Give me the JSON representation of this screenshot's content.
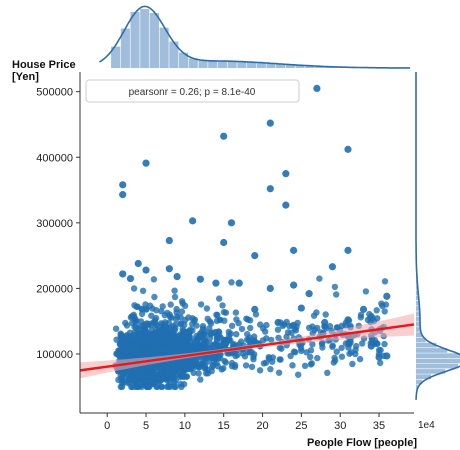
{
  "chart_data": {
    "type": "scatter",
    "title": "",
    "xlabel": "People Flow [people]",
    "ylabel_line1": "House Price",
    "ylabel_line2": "[Yen]",
    "x_scale_label": "1e4",
    "x_ticks": [
      0,
      5,
      10,
      15,
      20,
      25,
      30,
      35
    ],
    "x_tick_labels": [
      "0",
      "5",
      "10",
      "15",
      "20",
      "25",
      "30",
      "35"
    ],
    "y_ticks": [
      100000,
      200000,
      300000,
      400000,
      500000
    ],
    "y_tick_labels": [
      "100000",
      "200000",
      "300000",
      "400000",
      "500000"
    ],
    "xlim": [
      -3.5,
      39.5
    ],
    "ylim": [
      10000,
      530000
    ],
    "annotation": "pearsonr = 0.26; p = 8.1e-40",
    "grid": false,
    "regression": {
      "x": [
        -3.5,
        39.5
      ],
      "y": [
        75000,
        145000
      ],
      "color": "#e41a1c"
    },
    "colors": {
      "points": "#1f6fb2",
      "marginal_fill": "#8fb3d6",
      "marginal_line": "#2e6ea6",
      "band": "#f4a6a6"
    },
    "outliers": [
      {
        "x": 2,
        "y": 358000
      },
      {
        "x": 2,
        "y": 343000
      },
      {
        "x": 5,
        "y": 391000
      },
      {
        "x": 15,
        "y": 432000
      },
      {
        "x": 27,
        "y": 505000
      },
      {
        "x": 21,
        "y": 452000
      },
      {
        "x": 31,
        "y": 412000
      },
      {
        "x": 23,
        "y": 375000
      },
      {
        "x": 21,
        "y": 352000
      },
      {
        "x": 23,
        "y": 327000
      },
      {
        "x": 11,
        "y": 303000
      },
      {
        "x": 16,
        "y": 300000
      },
      {
        "x": 15,
        "y": 270000
      },
      {
        "x": 8,
        "y": 273000
      },
      {
        "x": 31,
        "y": 258000
      },
      {
        "x": 29,
        "y": 233000
      },
      {
        "x": 19,
        "y": 250000
      },
      {
        "x": 24,
        "y": 258000
      },
      {
        "x": 2,
        "y": 222000
      },
      {
        "x": 3,
        "y": 215000
      },
      {
        "x": 4,
        "y": 238000
      },
      {
        "x": 5,
        "y": 228000
      },
      {
        "x": 8,
        "y": 230000
      },
      {
        "x": 9,
        "y": 218000
      },
      {
        "x": 12,
        "y": 214000
      },
      {
        "x": 14,
        "y": 208000
      },
      {
        "x": 17,
        "y": 208000
      },
      {
        "x": 21,
        "y": 200000
      },
      {
        "x": 24,
        "y": 205000
      },
      {
        "x": 26,
        "y": 192000
      },
      {
        "x": 36,
        "y": 188000
      },
      {
        "x": 33,
        "y": 168000
      },
      {
        "x": 31,
        "y": 152000
      },
      {
        "x": 34,
        "y": 112000
      },
      {
        "x": 35,
        "y": 95000
      },
      {
        "x": 36,
        "y": 97000
      },
      {
        "x": 28,
        "y": 148000
      },
      {
        "x": 25,
        "y": 170000
      },
      {
        "x": 22,
        "y": 148000
      },
      {
        "x": 19,
        "y": 168000
      }
    ]
  }
}
